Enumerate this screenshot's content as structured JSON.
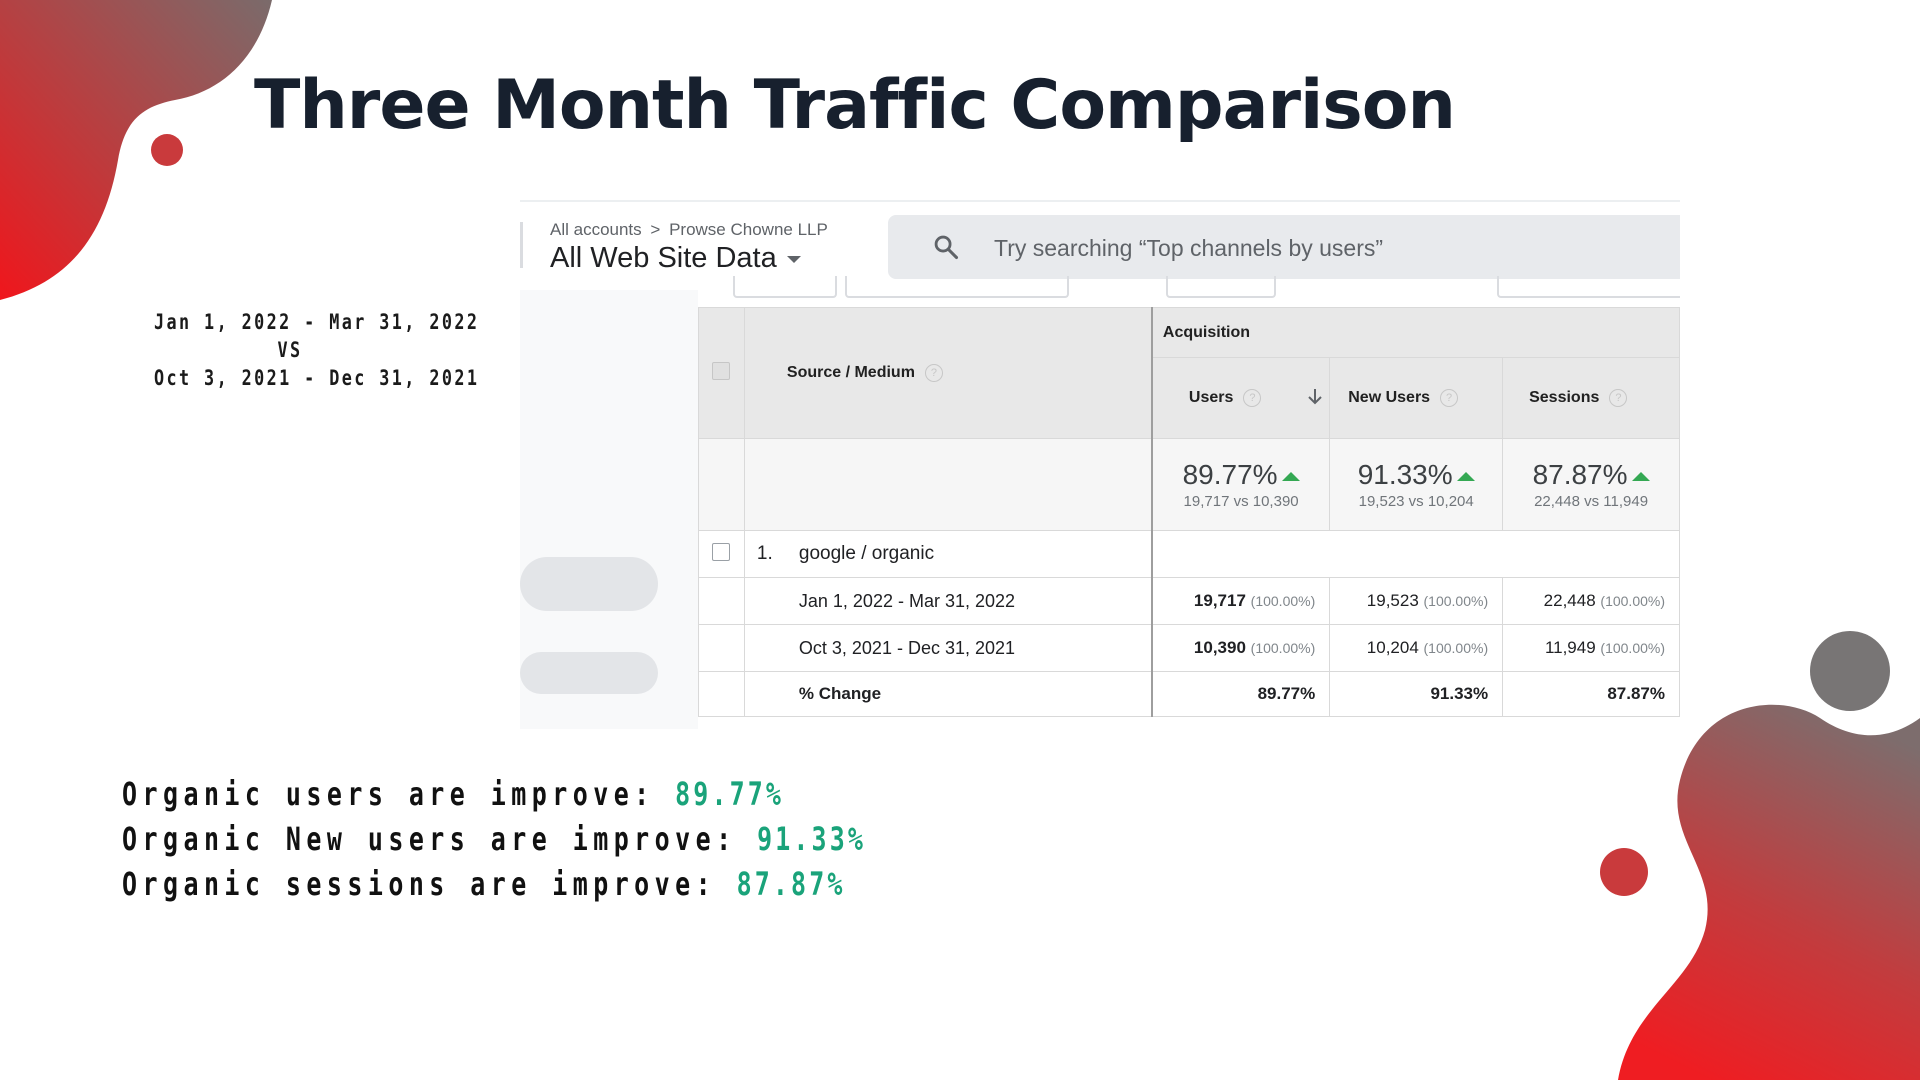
{
  "slide": {
    "title": "Three Month Traffic Comparison",
    "date_range": {
      "current": "Jan 1, 2022 - Mar 31, 2022",
      "vs": "VS",
      "previous": "Oct 3, 2021 - Dec 31, 2021"
    },
    "accent_colors": {
      "red": "#e8262a",
      "grey": "#757575",
      "green": "#1aa37a"
    }
  },
  "analytics": {
    "breadcrumb": {
      "root": "All accounts",
      "separator": ">",
      "account": "Prowse Chowne LLP"
    },
    "view_name": "All Web Site Data",
    "search": {
      "placeholder": "Try searching “Top channels by users”",
      "icon": "search-icon"
    },
    "table": {
      "dimension_header": "Source / Medium",
      "group_header": "Acquisition",
      "columns": [
        "Users",
        "New Users",
        "Sessions"
      ],
      "sort_icon": "arrow-down-icon",
      "totals": [
        {
          "change": "89.77%",
          "compare": "19,717 vs 10,390"
        },
        {
          "change": "91.33%",
          "compare": "19,523 vs 10,204"
        },
        {
          "change": "87.87%",
          "compare": "22,448 vs 11,949"
        }
      ],
      "row": {
        "index": "1.",
        "dimension": "google / organic",
        "sub_rows": [
          {
            "label": "Jan 1, 2022 - Mar 31, 2022",
            "values": [
              {
                "value": "19,717",
                "share": "(100.00%)"
              },
              {
                "value": "19,523",
                "share": "(100.00%)"
              },
              {
                "value": "22,448",
                "share": "(100.00%)"
              }
            ]
          },
          {
            "label": "Oct 3, 2021 - Dec 31, 2021",
            "values": [
              {
                "value": "10,390",
                "share": "(100.00%)"
              },
              {
                "value": "10,204",
                "share": "(100.00%)"
              },
              {
                "value": "11,949",
                "share": "(100.00%)"
              }
            ]
          },
          {
            "label": "% Change",
            "values": [
              {
                "value": "89.77%"
              },
              {
                "value": "91.33%"
              },
              {
                "value": "87.87%"
              }
            ]
          }
        ]
      }
    }
  },
  "summary": [
    {
      "text": "Organic users are improve: ",
      "value": "89.77%"
    },
    {
      "text": "Organic New users are improve: ",
      "value": "91.33%"
    },
    {
      "text": "Organic sessions are improve: ",
      "value": "87.87%"
    }
  ]
}
